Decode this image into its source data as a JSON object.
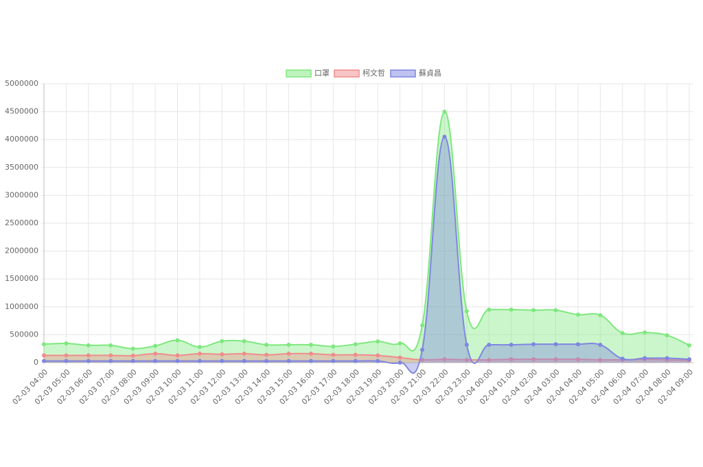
{
  "chart_data": {
    "type": "area",
    "categories": [
      "02-03 04:00",
      "02-03 05:00",
      "02-03 06:00",
      "02-03 07:00",
      "02-03 08:00",
      "02-03 09:00",
      "02-03 10:00",
      "02-03 11:00",
      "02-03 12:00",
      "02-03 13:00",
      "02-03 14:00",
      "02-03 15:00",
      "02-03 16:00",
      "02-03 17:00",
      "02-03 18:00",
      "02-03 19:00",
      "02-03 20:00",
      "02-03 21:00",
      "02-03 22:00",
      "02-03 23:00",
      "02-04 00:00",
      "02-04 01:00",
      "02-04 02:00",
      "02-04 03:00",
      "02-04 04:00",
      "02-04 05:00",
      "02-04 06:00",
      "02-04 07:00",
      "02-04 08:00",
      "02-04 09:00"
    ],
    "series": [
      {
        "name": "口罩",
        "color": "#7ee87e",
        "values": [
          330000,
          345000,
          310000,
          310000,
          250000,
          300000,
          400000,
          280000,
          385000,
          385000,
          320000,
          320000,
          320000,
          290000,
          330000,
          380000,
          345000,
          670000,
          4500000,
          920000,
          950000,
          950000,
          940000,
          940000,
          860000,
          850000,
          530000,
          540000,
          490000,
          310000
        ]
      },
      {
        "name": "柯文哲",
        "color": "#f08c8c",
        "values": [
          130000,
          130000,
          130000,
          130000,
          125000,
          160000,
          130000,
          160000,
          150000,
          160000,
          140000,
          160000,
          160000,
          140000,
          140000,
          130000,
          90000,
          50000,
          60000,
          50000,
          50000,
          60000,
          60000,
          60000,
          60000,
          50000,
          50000,
          60000,
          50000,
          40000
        ]
      },
      {
        "name": "蘇貞昌",
        "color": "#7f86e0",
        "values": [
          30000,
          30000,
          30000,
          30000,
          30000,
          30000,
          30000,
          30000,
          30000,
          30000,
          30000,
          30000,
          30000,
          30000,
          30000,
          30000,
          0,
          230000,
          4050000,
          320000,
          320000,
          320000,
          330000,
          330000,
          330000,
          320000,
          70000,
          80000,
          80000,
          60000
        ]
      }
    ],
    "ylim": [
      0,
      5000000
    ],
    "yticks": [
      0,
      500000,
      1000000,
      1500000,
      2000000,
      2500000,
      3000000,
      3500000,
      4000000,
      4500000,
      5000000
    ],
    "grid": true,
    "legend": "top"
  }
}
